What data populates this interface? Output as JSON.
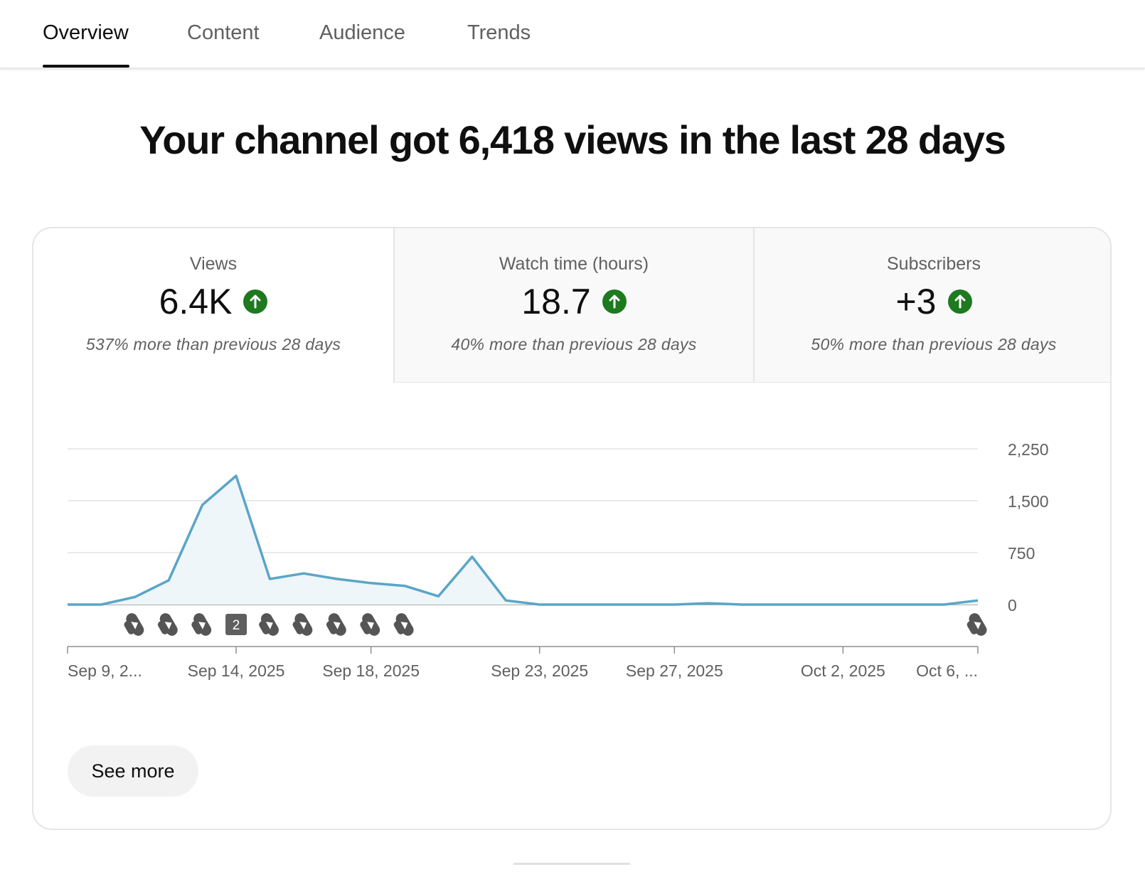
{
  "tabs": [
    {
      "label": "Overview",
      "active": true
    },
    {
      "label": "Content",
      "active": false
    },
    {
      "label": "Audience",
      "active": false
    },
    {
      "label": "Trends",
      "active": false
    }
  ],
  "headline": "Your channel got 6,418 views in the last 28 days",
  "metrics": [
    {
      "title": "Views",
      "value": "6.4K",
      "trend": "up",
      "note": "537% more than previous 28 days",
      "selected": true
    },
    {
      "title": "Watch time (hours)",
      "value": "18.7",
      "trend": "up",
      "note": "40% more than previous 28 days",
      "selected": false
    },
    {
      "title": "Subscribers",
      "value": "+3",
      "trend": "up",
      "note": "50% more than previous 28 days",
      "selected": false
    }
  ],
  "chart_data": {
    "type": "area",
    "dates": [
      "Sep 9",
      "Sep 10",
      "Sep 11",
      "Sep 12",
      "Sep 13",
      "Sep 14",
      "Sep 15",
      "Sep 16",
      "Sep 17",
      "Sep 18",
      "Sep 19",
      "Sep 20",
      "Sep 21",
      "Sep 22",
      "Sep 23",
      "Sep 24",
      "Sep 25",
      "Sep 26",
      "Sep 27",
      "Sep 28",
      "Sep 29",
      "Sep 30",
      "Oct 1",
      "Oct 2",
      "Oct 3",
      "Oct 4",
      "Oct 5",
      "Oct 6"
    ],
    "values": [
      0,
      0,
      110,
      350,
      1440,
      1860,
      370,
      450,
      370,
      310,
      270,
      120,
      690,
      60,
      0,
      0,
      0,
      0,
      0,
      20,
      0,
      0,
      0,
      0,
      0,
      0,
      0,
      60
    ],
    "ylim": [
      0,
      2250
    ],
    "y_ticks": [
      "2,250",
      "1,500",
      "750",
      "0"
    ],
    "y_tick_values": [
      2250,
      1500,
      750,
      0
    ],
    "x_ticks": [
      {
        "label": "Sep 9, 2...",
        "date": "Sep 9"
      },
      {
        "label": "Sep 14, 2025",
        "date": "Sep 14"
      },
      {
        "label": "Sep 18, 2025",
        "date": "Sep 18"
      },
      {
        "label": "Sep 23, 2025",
        "date": "Sep 23"
      },
      {
        "label": "Sep 27, 2025",
        "date": "Sep 27"
      },
      {
        "label": "Oct 2, 2025",
        "date": "Oct 2"
      },
      {
        "label": "Oct 6, ...",
        "date": "Oct 6"
      }
    ],
    "markers": [
      {
        "date": "Sep 11",
        "kind": "shorts"
      },
      {
        "date": "Sep 12",
        "kind": "shorts"
      },
      {
        "date": "Sep 13",
        "kind": "shorts"
      },
      {
        "date": "Sep 14",
        "kind": "count",
        "count": "2"
      },
      {
        "date": "Sep 15",
        "kind": "shorts"
      },
      {
        "date": "Sep 16",
        "kind": "shorts"
      },
      {
        "date": "Sep 17",
        "kind": "shorts"
      },
      {
        "date": "Sep 18",
        "kind": "shorts"
      },
      {
        "date": "Sep 19",
        "kind": "shorts"
      },
      {
        "date": "Oct 6",
        "kind": "shorts"
      }
    ],
    "line_color": "#5aa5c8",
    "fill_color": "#eef6fa",
    "grid": true
  },
  "see_more_label": "See more",
  "colors": {
    "trend_up": "#1e7a1e",
    "tab_active": "#0f0f0f",
    "tab_inactive": "#606060"
  }
}
